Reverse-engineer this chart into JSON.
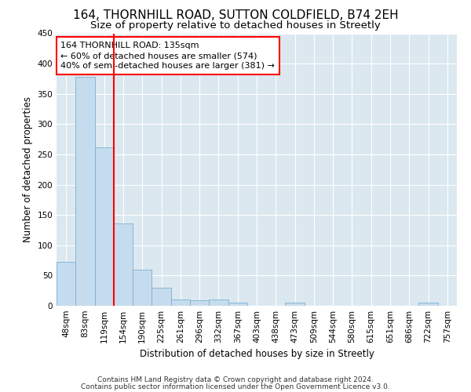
{
  "title1": "164, THORNHILL ROAD, SUTTON COLDFIELD, B74 2EH",
  "title2": "Size of property relative to detached houses in Streetly",
  "xlabel": "Distribution of detached houses by size in Streetly",
  "ylabel": "Number of detached properties",
  "bar_color": "#c5dcee",
  "bar_edge_color": "#7aafd4",
  "background_color": "#dce8f0",
  "grid_color": "#ffffff",
  "fig_background": "#ffffff",
  "categories": [
    "48sqm",
    "83sqm",
    "119sqm",
    "154sqm",
    "190sqm",
    "225sqm",
    "261sqm",
    "296sqm",
    "332sqm",
    "367sqm",
    "403sqm",
    "438sqm",
    "473sqm",
    "509sqm",
    "544sqm",
    "580sqm",
    "615sqm",
    "651sqm",
    "686sqm",
    "722sqm",
    "757sqm"
  ],
  "values": [
    73,
    378,
    262,
    136,
    60,
    30,
    10,
    9,
    10,
    5,
    0,
    0,
    5,
    0,
    0,
    0,
    0,
    0,
    0,
    5,
    0
  ],
  "red_line_x": 2.5,
  "annotation_text": "164 THORNHILL ROAD: 135sqm\n← 60% of detached houses are smaller (574)\n40% of semi-detached houses are larger (381) →",
  "ylim": [
    0,
    450
  ],
  "yticks": [
    0,
    50,
    100,
    150,
    200,
    250,
    300,
    350,
    400,
    450
  ],
  "footnote1": "Contains HM Land Registry data © Crown copyright and database right 2024.",
  "footnote2": "Contains public sector information licensed under the Open Government Licence v3.0.",
  "title_fontsize": 11,
  "subtitle_fontsize": 9.5,
  "axis_label_fontsize": 8.5,
  "tick_fontsize": 7.5,
  "annotation_fontsize": 8,
  "footnote_fontsize": 6.5
}
